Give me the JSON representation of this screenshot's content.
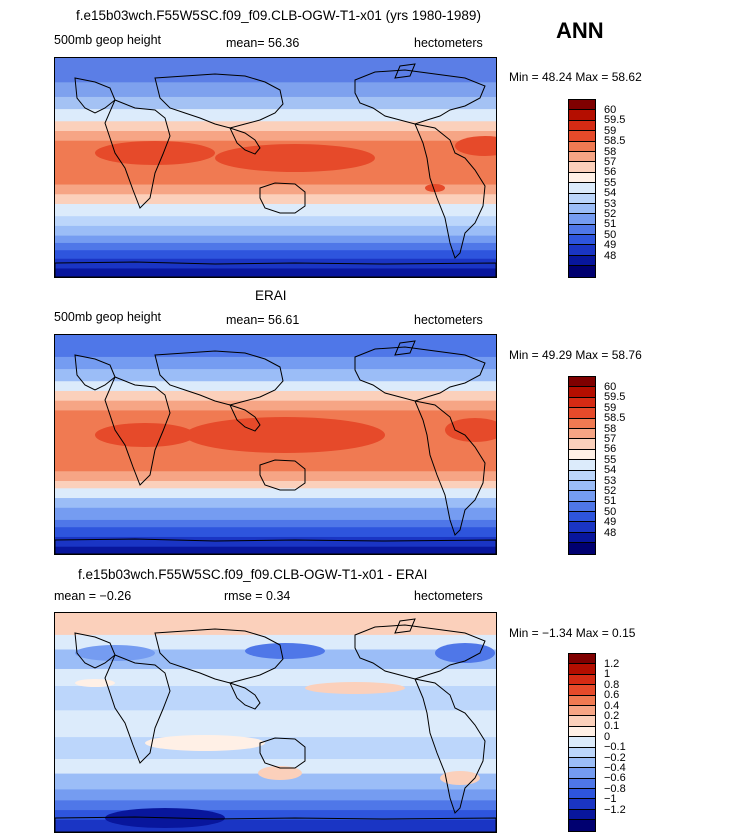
{
  "season": "ANN",
  "panels": [
    {
      "title": "f.e15b03wch.F55W5SC.f09_f09.CLB-OGW-T1-x01 (yrs 1980-1989)",
      "left_label": "500mb geop height",
      "center_label": "mean=  56.36",
      "right_label": "hectometers",
      "minmax": "Min =  48.24 Max =  58.62",
      "colorbar": {
        "colors": [
          "#7f0000",
          "#b40e00",
          "#d52b14",
          "#e64a2a",
          "#f07a52",
          "#f6a585",
          "#fbd0bb",
          "#fff0e6",
          "#dcebfb",
          "#bcd6fb",
          "#9bbdf7",
          "#759cf1",
          "#4f77e8",
          "#2e55dd",
          "#1a35c4",
          "#08169c",
          "#000070"
        ],
        "labels": [
          "60",
          "59.5",
          "59",
          "58.5",
          "58",
          "57",
          "56",
          "55",
          "54",
          "53",
          "52",
          "51",
          "50",
          "49",
          "48"
        ]
      },
      "map": {
        "bands": [
          {
            "lat_top": 90,
            "lat_bottom": 70,
            "color": "#5b7ee6"
          },
          {
            "lat_top": 70,
            "lat_bottom": 58,
            "color": "#7ea1ee"
          },
          {
            "lat_top": 58,
            "lat_bottom": 48,
            "color": "#a4c2f4"
          },
          {
            "lat_top": 48,
            "lat_bottom": 38,
            "color": "#dcebfb"
          },
          {
            "lat_top": 38,
            "lat_bottom": 30,
            "color": "#fbd0bb"
          },
          {
            "lat_top": 30,
            "lat_bottom": 22,
            "color": "#f6a585"
          },
          {
            "lat_top": 22,
            "lat_bottom": -14,
            "color": "#f07a52"
          },
          {
            "lat_top": -14,
            "lat_bottom": -22,
            "color": "#f6a585"
          },
          {
            "lat_top": -22,
            "lat_bottom": -30,
            "color": "#fbd0bb"
          },
          {
            "lat_top": -30,
            "lat_bottom": -40,
            "color": "#dcebfb"
          },
          {
            "lat_top": -40,
            "lat_bottom": -48,
            "color": "#bcd6fb"
          },
          {
            "lat_top": -48,
            "lat_bottom": -56,
            "color": "#9bbdf7"
          },
          {
            "lat_top": -56,
            "lat_bottom": -62,
            "color": "#759cf1"
          },
          {
            "lat_top": -62,
            "lat_bottom": -68,
            "color": "#4f77e8"
          },
          {
            "lat_top": -68,
            "lat_bottom": -75,
            "color": "#2e55dd"
          },
          {
            "lat_top": -75,
            "lat_bottom": -83,
            "color": "#1a35c4"
          },
          {
            "lat_top": -83,
            "lat_bottom": -90,
            "color": "#08169c"
          }
        ]
      }
    },
    {
      "title": "ERAI",
      "left_label": "500mb geop height",
      "center_label": "mean=  56.61",
      "right_label": "hectometers",
      "minmax": "Min =  49.29 Max =  58.76",
      "colorbar": {
        "colors": [
          "#7f0000",
          "#b40e00",
          "#d52b14",
          "#e64a2a",
          "#f07a52",
          "#f6a585",
          "#fbd0bb",
          "#fff0e6",
          "#dcebfb",
          "#bcd6fb",
          "#9bbdf7",
          "#759cf1",
          "#4f77e8",
          "#2e55dd",
          "#1a35c4",
          "#08169c",
          "#000070"
        ],
        "labels": [
          "60",
          "59.5",
          "59",
          "58.5",
          "58",
          "57",
          "56",
          "55",
          "54",
          "53",
          "52",
          "51",
          "50",
          "49",
          "48"
        ]
      },
      "map": {
        "bands": [
          {
            "lat_top": 90,
            "lat_bottom": 72,
            "color": "#4f77e8"
          },
          {
            "lat_top": 72,
            "lat_bottom": 62,
            "color": "#759cf1"
          },
          {
            "lat_top": 62,
            "lat_bottom": 52,
            "color": "#9bbdf7"
          },
          {
            "lat_top": 52,
            "lat_bottom": 44,
            "color": "#dcebfb"
          },
          {
            "lat_top": 44,
            "lat_bottom": 36,
            "color": "#fbd0bb"
          },
          {
            "lat_top": 36,
            "lat_bottom": 28,
            "color": "#f6a585"
          },
          {
            "lat_top": 28,
            "lat_bottom": -22,
            "color": "#f07a52"
          },
          {
            "lat_top": -22,
            "lat_bottom": -30,
            "color": "#f6a585"
          },
          {
            "lat_top": -30,
            "lat_bottom": -36,
            "color": "#fbd0bb"
          },
          {
            "lat_top": -36,
            "lat_bottom": -44,
            "color": "#dcebfb"
          },
          {
            "lat_top": -44,
            "lat_bottom": -52,
            "color": "#9bbdf7"
          },
          {
            "lat_top": -52,
            "lat_bottom": -62,
            "color": "#759cf1"
          },
          {
            "lat_top": -62,
            "lat_bottom": -68,
            "color": "#4f77e8"
          },
          {
            "lat_top": -68,
            "lat_bottom": -76,
            "color": "#2e55dd"
          },
          {
            "lat_top": -76,
            "lat_bottom": -84,
            "color": "#1a35c4"
          },
          {
            "lat_top": -84,
            "lat_bottom": -90,
            "color": "#08169c"
          }
        ]
      }
    },
    {
      "title": "f.e15b03wch.F55W5SC.f09_f09.CLB-OGW-T1-x01 - ERAI",
      "left_label": "mean =  −0.26",
      "center_label": "rmse =   0.34",
      "right_label": "hectometers",
      "minmax": "Min =  −1.34 Max =   0.15",
      "colorbar": {
        "colors": [
          "#7f0000",
          "#b40e00",
          "#d52b14",
          "#e64a2a",
          "#f07a52",
          "#f6a585",
          "#fbd0bb",
          "#fff0e6",
          "#dcebfb",
          "#bcd6fb",
          "#9bbdf7",
          "#759cf1",
          "#4f77e8",
          "#2e55dd",
          "#1a35c4",
          "#08169c",
          "#000070"
        ],
        "labels": [
          "1.2",
          "1",
          "0.8",
          "0.6",
          "0.4",
          "0.2",
          "0.1",
          "0",
          "−0.1",
          "−0.2",
          "−0.4",
          "−0.6",
          "−0.8",
          "−1",
          "−1.2"
        ]
      },
      "map": {
        "bands": [
          {
            "lat_top": 90,
            "lat_bottom": 72,
            "color": "#fbd0bb"
          },
          {
            "lat_top": 72,
            "lat_bottom": 60,
            "color": "#dcebfb"
          },
          {
            "lat_top": 60,
            "lat_bottom": 44,
            "color": "#9bbdf7"
          },
          {
            "lat_top": 44,
            "lat_bottom": 30,
            "color": "#dcebfb"
          },
          {
            "lat_top": 30,
            "lat_bottom": 10,
            "color": "#bcd6fb"
          },
          {
            "lat_top": 10,
            "lat_bottom": -12,
            "color": "#dcebfb"
          },
          {
            "lat_top": -12,
            "lat_bottom": -30,
            "color": "#bcd6fb"
          },
          {
            "lat_top": -30,
            "lat_bottom": -42,
            "color": "#dcebfb"
          },
          {
            "lat_top": -42,
            "lat_bottom": -55,
            "color": "#9bbdf7"
          },
          {
            "lat_top": -55,
            "lat_bottom": -64,
            "color": "#759cf1"
          },
          {
            "lat_top": -64,
            "lat_bottom": -72,
            "color": "#4f77e8"
          },
          {
            "lat_top": -72,
            "lat_bottom": -80,
            "color": "#2e55dd"
          },
          {
            "lat_top": -80,
            "lat_bottom": -90,
            "color": "#1a35c4"
          }
        ]
      }
    }
  ]
}
